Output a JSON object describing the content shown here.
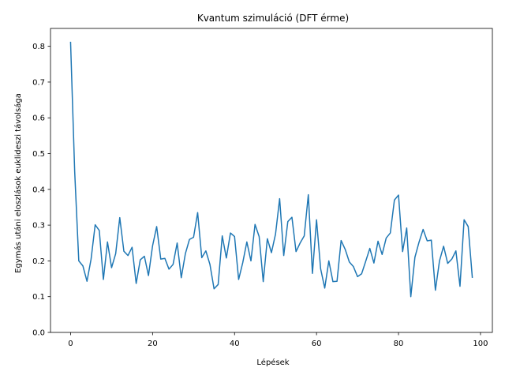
{
  "chart_data": {
    "type": "line",
    "title": "Kvantum szimuláció (DFT érme)",
    "xlabel": "Lépések",
    "ylabel": "Egymás utáni eloszlások euklideszi távolsága",
    "xlim": [
      -4.9,
      102.9
    ],
    "ylim": [
      0,
      0.85
    ],
    "x_ticks": [
      0,
      20,
      40,
      60,
      80,
      100
    ],
    "y_ticks": [
      0.0,
      0.1,
      0.2,
      0.3,
      0.4,
      0.5,
      0.6,
      0.7,
      0.8
    ],
    "grid": false,
    "legend": "none",
    "series": [
      {
        "color": "#1f77b4",
        "x": [
          0,
          1,
          2,
          3,
          4,
          5,
          6,
          7,
          8,
          9,
          10,
          11,
          12,
          13,
          14,
          15,
          16,
          17,
          18,
          19,
          20,
          21,
          22,
          23,
          24,
          25,
          26,
          27,
          28,
          29,
          30,
          31,
          32,
          33,
          34,
          35,
          36,
          37,
          38,
          39,
          40,
          41,
          42,
          43,
          44,
          45,
          46,
          47,
          48,
          49,
          50,
          51,
          52,
          53,
          54,
          55,
          56,
          57,
          58,
          59,
          60,
          61,
          62,
          63,
          64,
          65,
          66,
          67,
          68,
          69,
          70,
          71,
          72,
          73,
          74,
          75,
          76,
          77,
          78,
          79,
          80,
          81,
          82,
          83,
          84,
          85,
          86,
          87,
          88,
          89,
          90,
          91,
          92,
          93,
          94,
          95,
          96,
          97,
          98
        ],
        "values": [
          0.811,
          0.45,
          0.2,
          0.186,
          0.143,
          0.205,
          0.301,
          0.285,
          0.148,
          0.253,
          0.181,
          0.22,
          0.321,
          0.227,
          0.215,
          0.238,
          0.137,
          0.203,
          0.213,
          0.159,
          0.242,
          0.296,
          0.205,
          0.207,
          0.177,
          0.19,
          0.25,
          0.153,
          0.22,
          0.26,
          0.266,
          0.335,
          0.209,
          0.228,
          0.19,
          0.122,
          0.134,
          0.27,
          0.208,
          0.278,
          0.268,
          0.148,
          0.195,
          0.253,
          0.2,
          0.302,
          0.268,
          0.142,
          0.262,
          0.223,
          0.275,
          0.374,
          0.215,
          0.31,
          0.322,
          0.226,
          0.25,
          0.27,
          0.385,
          0.165,
          0.315,
          0.178,
          0.124,
          0.2,
          0.142,
          0.143,
          0.257,
          0.232,
          0.197,
          0.184,
          0.156,
          0.164,
          0.199,
          0.235,
          0.194,
          0.255,
          0.218,
          0.264,
          0.278,
          0.37,
          0.384,
          0.226,
          0.292,
          0.1,
          0.21,
          0.252,
          0.288,
          0.256,
          0.258,
          0.118,
          0.2,
          0.241,
          0.193,
          0.205,
          0.228,
          0.129,
          0.315,
          0.296,
          0.154
        ]
      }
    ]
  }
}
